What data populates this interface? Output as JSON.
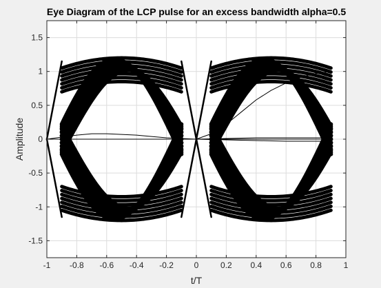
{
  "chart_data": {
    "type": "line",
    "title": "Eye Diagram of the LCP pulse for an excess bandwidth alpha=0.5",
    "xlabel": "t/T",
    "ylabel": "Amplitude",
    "xlim": [
      -1,
      1
    ],
    "ylim": [
      -1.75,
      1.75
    ],
    "xticks": [
      "-1",
      "-0.8",
      "-0.6",
      "-0.4",
      "-0.2",
      "0",
      "0.2",
      "0.4",
      "0.6",
      "0.8",
      "1"
    ],
    "yticks": [
      "1.5",
      "1",
      "0.5",
      "0",
      "-0.5",
      "-1",
      "-1.5"
    ],
    "grid": true,
    "legend": "none",
    "eye_data_x_range": [
      -0.9,
      0.9
    ],
    "eye_centers": [
      -0.5,
      0.5
    ],
    "eye_levels": [
      1,
      -1
    ],
    "eye_peak_amplitude": 1.35,
    "band_bounds": [
      {
        "x": 0.1,
        "upper": 1.15,
        "lower": 0.85
      },
      {
        "x": 0.2,
        "upper": 1.3,
        "lower": 1.1
      },
      {
        "x": 0.5,
        "upper": 1.35,
        "lower": 1.15
      },
      {
        "x": 0.8,
        "upper": 1.3,
        "lower": 1.1
      },
      {
        "x": 0.9,
        "upper": 1.15,
        "lower": 0.85
      }
    ],
    "stray_traces": [
      {
        "x": [
          0,
          0.1,
          0.2,
          0.3,
          0.4,
          0.5,
          0.6,
          0.7,
          0.8,
          0.9
        ],
        "y": [
          0,
          0.08,
          0.22,
          0.4,
          0.58,
          0.72,
          0.83,
          0.92,
          0.97,
          1.0
        ]
      },
      {
        "x": [
          -1,
          -0.9,
          -0.8,
          -0.7,
          -0.6,
          -0.5,
          -0.4,
          -0.3,
          -0.2,
          -0.1,
          0
        ],
        "y": [
          0,
          0.03,
          0.06,
          0.08,
          0.08,
          0.07,
          0.06,
          0.04,
          0.02,
          0.01,
          0
        ]
      },
      {
        "x": [
          0,
          0.2,
          0.4,
          0.6,
          0.8,
          0.9
        ],
        "y": [
          0,
          -0.01,
          -0.02,
          -0.03,
          -0.03,
          -0.03
        ]
      },
      {
        "x": [
          0,
          0.2,
          0.4,
          0.6,
          0.8,
          0.9
        ],
        "y": [
          0,
          0.01,
          0.02,
          0.02,
          0.02,
          0.02
        ]
      }
    ]
  }
}
